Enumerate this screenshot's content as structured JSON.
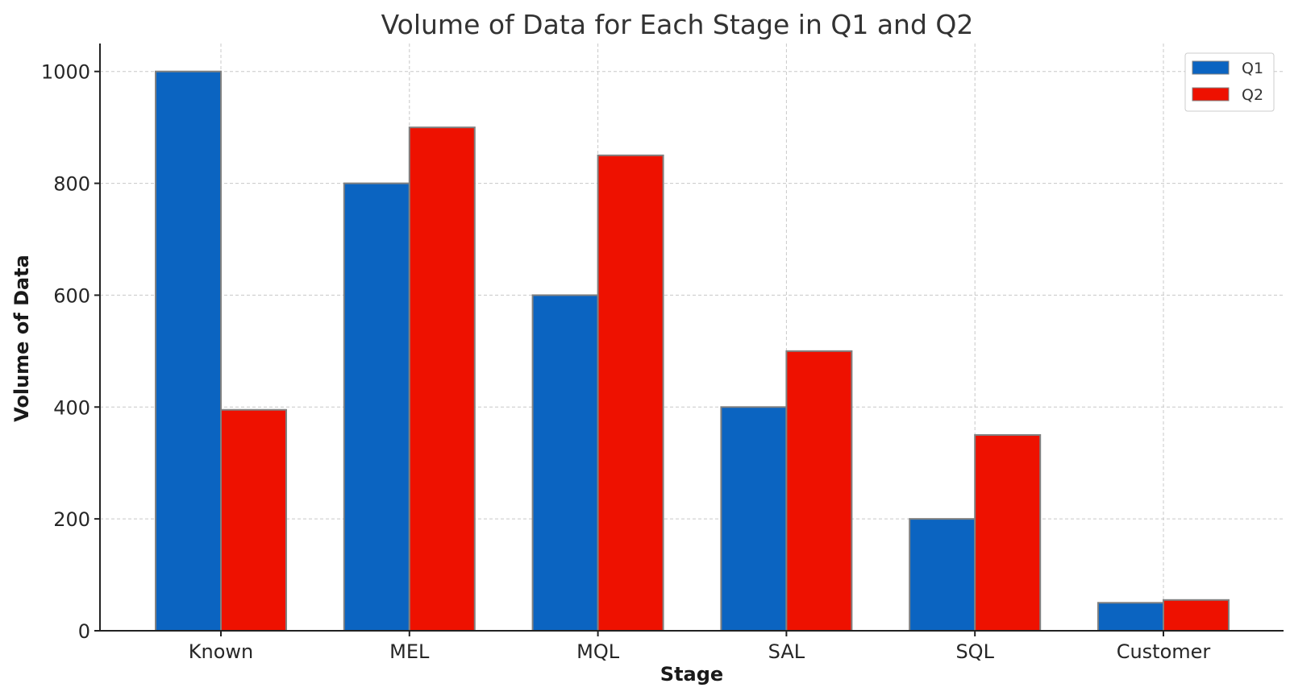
{
  "chart_data": {
    "type": "bar",
    "title": "Volume of Data for Each Stage in Q1 and Q2",
    "xlabel": "Stage",
    "ylabel": "Volume of Data",
    "categories": [
      "Known",
      "MEL",
      "MQL",
      "SAL",
      "SQL",
      "Customer"
    ],
    "series": [
      {
        "name": "Q1",
        "color": "#0b64c1",
        "values": [
          1000,
          800,
          600,
          400,
          200,
          50
        ]
      },
      {
        "name": "Q2",
        "color": "#ee1100",
        "values": [
          395,
          900,
          850,
          500,
          350,
          55
        ]
      }
    ],
    "ylim": [
      0,
      1050
    ],
    "yticks": [
      0,
      200,
      400,
      600,
      800,
      1000
    ],
    "grid": true,
    "legend_position": "top-right"
  }
}
